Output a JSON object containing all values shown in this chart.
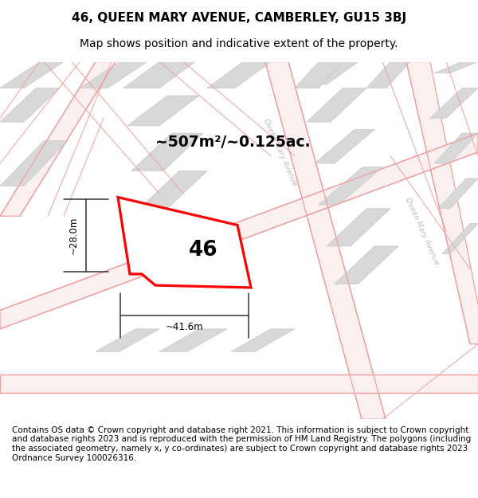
{
  "title_line1": "46, QUEEN MARY AVENUE, CAMBERLEY, GU15 3BJ",
  "title_line2": "Map shows position and indicative extent of the property.",
  "footer_text": "Contains OS data © Crown copyright and database right 2021. This information is subject to Crown copyright and database rights 2023 and is reproduced with the permission of HM Land Registry. The polygons (including the associated geometry, namely x, y co-ordinates) are subject to Crown copyright and database rights 2023 Ordnance Survey 100026316.",
  "area_label": "~507m²/~0.125ac.",
  "number_label": "46",
  "width_label": "~41.6m",
  "height_label": "~28.0m",
  "bg_color": "#f7f3f3",
  "building_color": "#d8d8d8",
  "building_edge": "#cccccc",
  "plot_color": "#ff0000",
  "road_line_color": "#f0a0a0",
  "road_fill_color": "#faf0f0",
  "title_fontsize": 11,
  "subtitle_fontsize": 10,
  "footer_fontsize": 7.5,
  "street_label_color": "#bbbbbb",
  "dim_color": "#333333"
}
